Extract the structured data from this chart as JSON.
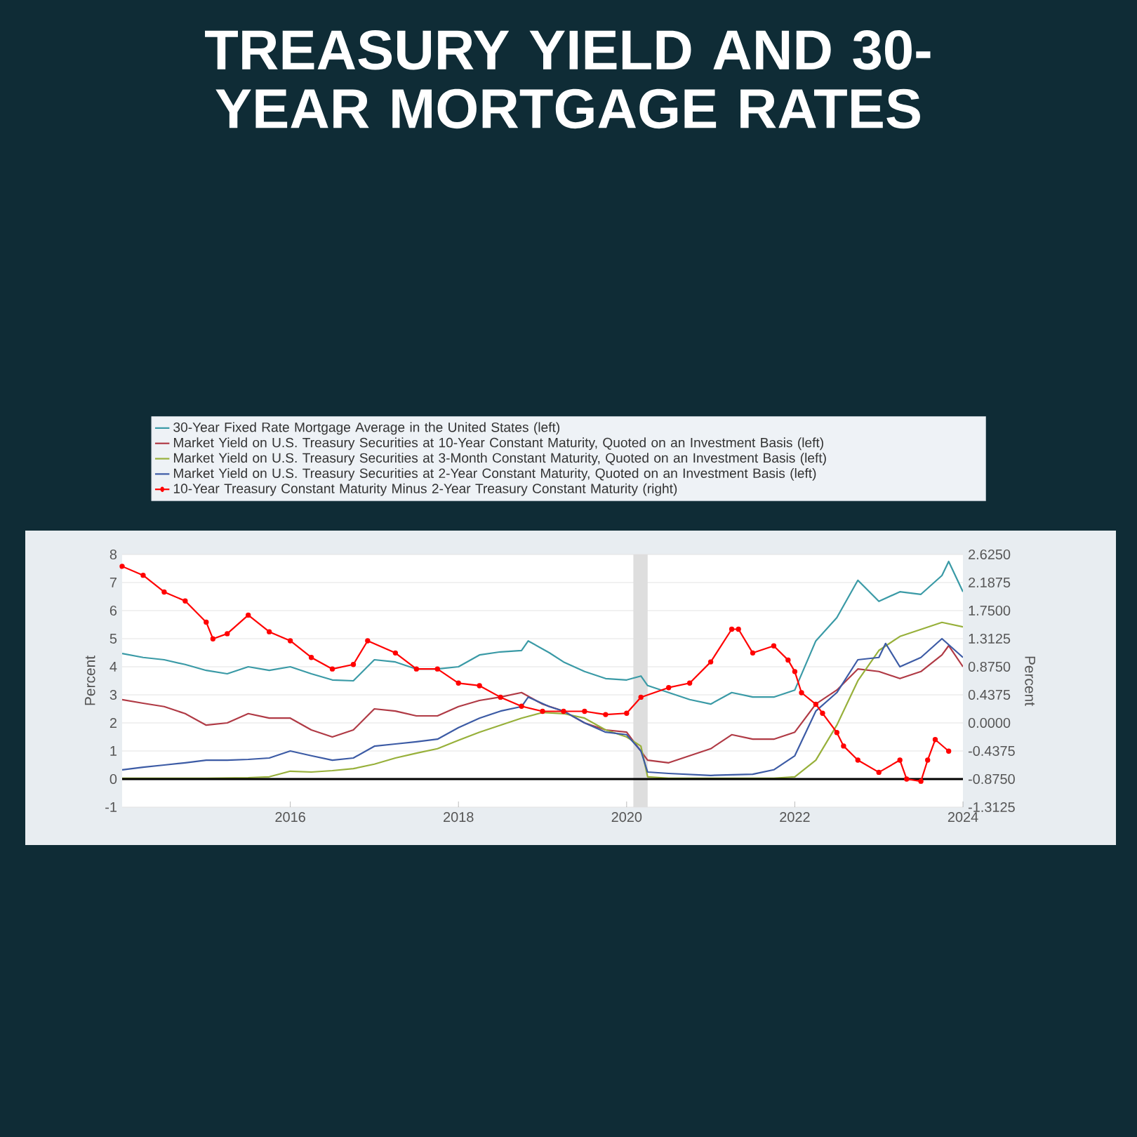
{
  "chart_data": {
    "type": "line",
    "title": "TREASURY YIELD AND 30-YEAR MORTGAGE RATES",
    "ylabel": "Percent",
    "y2label": "Percent",
    "xlim": [
      "2014-01",
      "2024-01"
    ],
    "xticks": [
      {
        "value": "2016-01",
        "label": "2016"
      },
      {
        "value": "2018-01",
        "label": "2018"
      },
      {
        "value": "2020-01",
        "label": "2020"
      },
      {
        "value": "2022-01",
        "label": "2022"
      },
      {
        "value": "2024-01",
        "label": "2024"
      }
    ],
    "ylim": [
      -1,
      8
    ],
    "yticks": [
      -1,
      0,
      1,
      2,
      3,
      4,
      5,
      6,
      7,
      8
    ],
    "y2lim": [
      -1.3125,
      2.625
    ],
    "y2ticks": [
      {
        "value": -1.3125,
        "label": "-1.3125"
      },
      {
        "value": -0.875,
        "label": "-0.8750"
      },
      {
        "value": -0.4375,
        "label": "-0.4375"
      },
      {
        "value": 0,
        "label": "0.0000"
      },
      {
        "value": 0.4375,
        "label": "0.4375"
      },
      {
        "value": 0.875,
        "label": "0.8750"
      },
      {
        "value": 1.3125,
        "label": "1.3125"
      },
      {
        "value": 1.75,
        "label": "1.7500"
      },
      {
        "value": 2.1875,
        "label": "2.1875"
      },
      {
        "value": 2.625,
        "label": "2.6250"
      }
    ],
    "grid": "y",
    "legend": "top",
    "bands": [
      {
        "axis": "x",
        "from": "2020-02",
        "to": "2020-04",
        "color": "#dedede"
      }
    ],
    "ref_lines": [
      {
        "axis": "y",
        "value": 0,
        "color": "#000000"
      }
    ],
    "series": [
      {
        "name": "30-Year Fixed Rate Mortgage Average in the United States (left)",
        "color": "#3a9aa6",
        "x": [
          "2014-01",
          "2014-04",
          "2014-07",
          "2014-10",
          "2015-01",
          "2015-04",
          "2015-07",
          "2015-10",
          "2016-01",
          "2016-04",
          "2016-07",
          "2016-10",
          "2017-01",
          "2017-04",
          "2017-07",
          "2017-10",
          "2018-01",
          "2018-04",
          "2018-07",
          "2018-10",
          "2018-11",
          "2019-02",
          "2019-04",
          "2019-07",
          "2019-10",
          "2020-01",
          "2020-03",
          "2020-04",
          "2020-07",
          "2020-10",
          "2021-01",
          "2021-04",
          "2021-07",
          "2021-10",
          "2022-01",
          "2022-04",
          "2022-07",
          "2022-10",
          "2023-01",
          "2023-04",
          "2023-07",
          "2023-10",
          "2023-11",
          "2024-01"
        ],
        "values": [
          4.47,
          4.33,
          4.25,
          4.08,
          3.87,
          3.75,
          4.0,
          3.87,
          4.0,
          3.75,
          3.53,
          3.5,
          4.25,
          4.17,
          3.92,
          3.92,
          4.0,
          4.42,
          4.53,
          4.58,
          4.92,
          4.5,
          4.17,
          3.83,
          3.58,
          3.53,
          3.67,
          3.33,
          3.08,
          2.83,
          2.67,
          3.08,
          2.92,
          2.92,
          3.17,
          4.92,
          5.75,
          7.08,
          6.33,
          6.67,
          6.58,
          7.25,
          7.75,
          6.67
        ]
      },
      {
        "name": "Market Yield on U.S. Treasury Securities at 10-Year Constant Maturity, Quoted on an Investment Basis (left)",
        "color": "#b03a45",
        "x": [
          "2014-01",
          "2014-04",
          "2014-07",
          "2014-10",
          "2015-01",
          "2015-04",
          "2015-07",
          "2015-10",
          "2016-01",
          "2016-04",
          "2016-07",
          "2016-10",
          "2017-01",
          "2017-04",
          "2017-07",
          "2017-10",
          "2018-01",
          "2018-04",
          "2018-07",
          "2018-10",
          "2019-01",
          "2019-04",
          "2019-07",
          "2019-10",
          "2020-01",
          "2020-04",
          "2020-07",
          "2020-10",
          "2021-01",
          "2021-04",
          "2021-07",
          "2021-10",
          "2022-01",
          "2022-04",
          "2022-07",
          "2022-10",
          "2023-01",
          "2023-04",
          "2023-07",
          "2023-10",
          "2023-11",
          "2024-01"
        ],
        "values": [
          2.83,
          2.7,
          2.58,
          2.33,
          1.92,
          2.0,
          2.33,
          2.17,
          2.17,
          1.75,
          1.5,
          1.75,
          2.5,
          2.42,
          2.25,
          2.25,
          2.58,
          2.8,
          2.92,
          3.08,
          2.67,
          2.42,
          2.0,
          1.75,
          1.67,
          0.67,
          0.58,
          0.83,
          1.08,
          1.58,
          1.42,
          1.42,
          1.67,
          2.67,
          3.17,
          3.92,
          3.83,
          3.58,
          3.83,
          4.42,
          4.75,
          4.0
        ]
      },
      {
        "name": "Market Yield on U.S. Treasury Securities at 3-Month Constant Maturity, Quoted on an Investment Basis (left)",
        "color": "#97b03a",
        "x": [
          "2014-01",
          "2014-07",
          "2015-01",
          "2015-07",
          "2015-10",
          "2016-01",
          "2016-04",
          "2016-07",
          "2016-10",
          "2017-01",
          "2017-04",
          "2017-07",
          "2017-10",
          "2018-01",
          "2018-04",
          "2018-07",
          "2018-10",
          "2019-01",
          "2019-04",
          "2019-07",
          "2019-10",
          "2020-01",
          "2020-03",
          "2020-04",
          "2020-07",
          "2021-01",
          "2021-07",
          "2021-10",
          "2022-01",
          "2022-04",
          "2022-07",
          "2022-10",
          "2023-01",
          "2023-04",
          "2023-07",
          "2023-10",
          "2024-01"
        ],
        "values": [
          0.03,
          0.03,
          0.03,
          0.05,
          0.08,
          0.28,
          0.25,
          0.3,
          0.37,
          0.53,
          0.75,
          0.92,
          1.08,
          1.38,
          1.67,
          1.92,
          2.17,
          2.37,
          2.33,
          2.17,
          1.75,
          1.5,
          1.17,
          0.08,
          0.03,
          0.03,
          0.03,
          0.03,
          0.08,
          0.67,
          1.92,
          3.5,
          4.58,
          5.08,
          5.33,
          5.58,
          5.42
        ]
      },
      {
        "name": "Market Yield on U.S. Treasury Securities at 2-Year Constant Maturity, Quoted on an Investment Basis (left)",
        "color": "#3c5ba5",
        "x": [
          "2014-01",
          "2014-04",
          "2014-07",
          "2014-10",
          "2015-01",
          "2015-04",
          "2015-07",
          "2015-10",
          "2016-01",
          "2016-04",
          "2016-07",
          "2016-10",
          "2017-01",
          "2017-04",
          "2017-07",
          "2017-10",
          "2018-01",
          "2018-04",
          "2018-07",
          "2018-10",
          "2018-11",
          "2019-02",
          "2019-04",
          "2019-07",
          "2019-10",
          "2020-01",
          "2020-03",
          "2020-04",
          "2020-07",
          "2021-01",
          "2021-07",
          "2021-10",
          "2022-01",
          "2022-04",
          "2022-07",
          "2022-10",
          "2023-01",
          "2023-02",
          "2023-04",
          "2023-07",
          "2023-10",
          "2024-01"
        ],
        "values": [
          0.33,
          0.42,
          0.5,
          0.58,
          0.67,
          0.67,
          0.7,
          0.75,
          1.0,
          0.83,
          0.67,
          0.75,
          1.17,
          1.25,
          1.33,
          1.42,
          1.83,
          2.17,
          2.42,
          2.58,
          2.92,
          2.58,
          2.42,
          2.0,
          1.67,
          1.58,
          1.0,
          0.25,
          0.2,
          0.13,
          0.17,
          0.33,
          0.83,
          2.42,
          3.08,
          4.25,
          4.33,
          4.83,
          4.0,
          4.33,
          5.0,
          4.33
        ]
      },
      {
        "name": "10-Year Treasury Constant Maturity Minus 2-Year Treasury Constant Maturity (right)",
        "color": "#ff0000",
        "axis": "y2",
        "marker": "circle",
        "x": [
          "2014-01",
          "2014-04",
          "2014-07",
          "2014-10",
          "2015-01",
          "2015-02",
          "2015-04",
          "2015-07",
          "2015-10",
          "2016-01",
          "2016-04",
          "2016-07",
          "2016-10",
          "2016-12",
          "2017-04",
          "2017-07",
          "2017-10",
          "2018-01",
          "2018-04",
          "2018-07",
          "2018-10",
          "2019-01",
          "2019-04",
          "2019-07",
          "2019-10",
          "2020-01",
          "2020-03",
          "2020-07",
          "2020-10",
          "2021-01",
          "2021-04",
          "2021-05",
          "2021-07",
          "2021-10",
          "2021-12",
          "2022-01",
          "2022-02",
          "2022-04",
          "2022-05",
          "2022-07",
          "2022-08",
          "2022-10",
          "2023-01",
          "2023-04",
          "2023-05",
          "2023-07",
          "2023-08",
          "2023-09",
          "2023-11"
        ],
        "values": [
          2.44,
          2.3,
          2.04,
          1.9,
          1.57,
          1.31,
          1.39,
          1.68,
          1.42,
          1.28,
          1.02,
          0.84,
          0.91,
          1.28,
          1.09,
          0.84,
          0.84,
          0.62,
          0.58,
          0.4,
          0.26,
          0.18,
          0.18,
          0.18,
          0.13,
          0.15,
          0.4,
          0.55,
          0.62,
          0.95,
          1.46,
          1.46,
          1.09,
          1.2,
          0.98,
          0.8,
          0.47,
          0.29,
          0.15,
          -0.15,
          -0.36,
          -0.58,
          -0.77,
          -0.58,
          -0.875,
          -0.91,
          -0.58,
          -0.26,
          -0.44
        ]
      }
    ]
  }
}
